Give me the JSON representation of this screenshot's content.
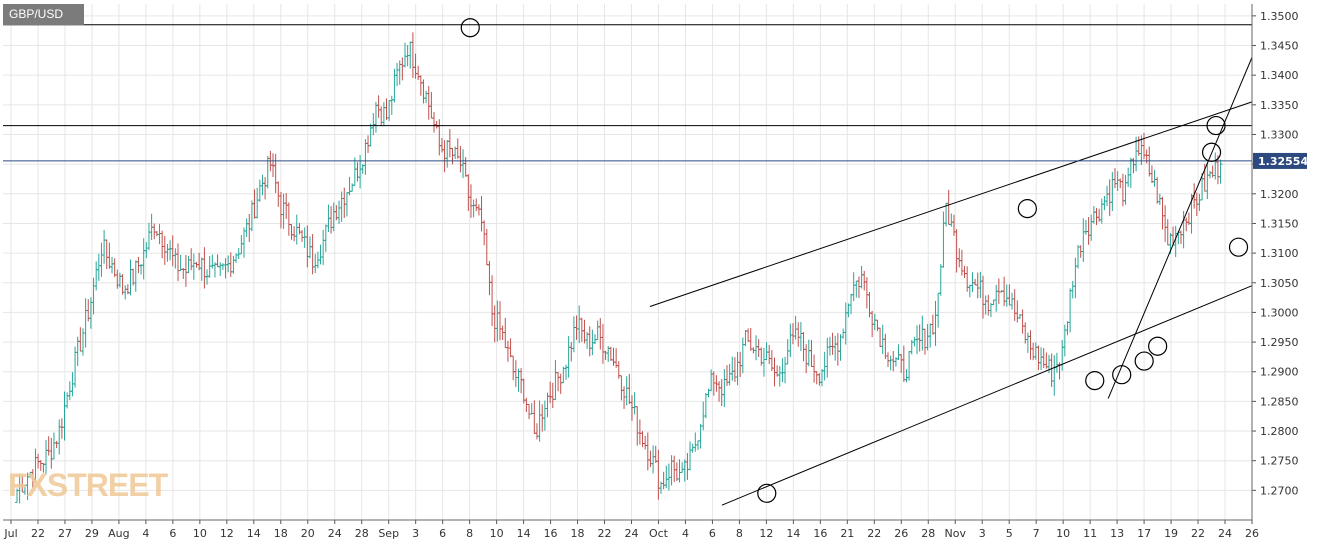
{
  "symbol": "GBP/USD",
  "logo_text": "FXSTREET",
  "colors": {
    "bull": "#26a69a",
    "bear": "#c0504d",
    "current_line": "#2c4a80",
    "price_badge": "#2c4a80",
    "lines": "#000000",
    "grid": "#e6e6e6"
  },
  "chart_data": {
    "type": "candlestick",
    "title": "",
    "xlabel": "",
    "ylabel": "",
    "ylim": [
      1.265,
      1.352
    ],
    "yticks": [
      "1.3500",
      "1.3450",
      "1.3400",
      "1.3350",
      "1.3300",
      "1.3250",
      "1.3200",
      "1.3150",
      "1.3100",
      "1.3050",
      "1.3000",
      "1.2950",
      "1.2900",
      "1.2850",
      "1.2800",
      "1.2750",
      "1.2700"
    ],
    "xticks": [
      "Jul",
      "22",
      "27",
      "29",
      "Aug",
      "4",
      "6",
      "10",
      "12",
      "14",
      "18",
      "20",
      "24",
      "28",
      "Sep",
      "3",
      "6",
      "8",
      "10",
      "14",
      "16",
      "18",
      "22",
      "24",
      "Oct",
      "4",
      "6",
      "8",
      "12",
      "14",
      "16",
      "21",
      "22",
      "26",
      "28",
      "Nov",
      "3",
      "5",
      "7",
      "10",
      "11",
      "13",
      "17",
      "19",
      "22",
      "24",
      "26"
    ],
    "x_sessions": 139,
    "current_price": "1.32554",
    "series": [
      {
        "values": [
          1.27,
          1.2725,
          1.2745,
          1.276,
          1.28,
          1.288,
          1.295,
          1.302,
          1.311,
          1.308,
          1.304,
          1.306,
          1.31,
          1.315,
          1.312,
          1.308,
          1.307,
          1.309,
          1.307,
          1.306,
          1.308,
          1.311,
          1.315,
          1.321,
          1.325,
          1.318,
          1.315,
          1.312,
          1.309,
          1.312,
          1.317,
          1.32,
          1.323,
          1.328,
          1.335,
          1.333,
          1.34,
          1.345,
          1.341,
          1.335,
          1.328,
          1.327,
          1.325,
          1.318,
          1.315,
          1.3,
          1.296,
          1.29,
          1.287,
          1.279,
          1.285,
          1.288,
          1.292,
          1.298,
          1.295,
          1.296,
          1.294,
          1.29,
          1.285,
          1.28,
          1.276,
          1.271,
          1.274,
          1.272,
          1.276,
          1.284,
          1.289,
          1.287,
          1.29,
          1.295,
          1.294,
          1.292,
          1.289,
          1.294,
          1.296,
          1.292,
          1.29,
          1.293,
          1.296,
          1.304,
          1.306,
          1.3,
          1.295,
          1.292,
          1.29,
          1.294,
          1.296,
          1.299,
          1.318,
          1.311,
          1.306,
          1.304,
          1.302,
          1.305,
          1.302,
          1.298,
          1.294,
          1.292,
          1.29,
          1.293,
          1.306,
          1.314,
          1.316,
          1.319,
          1.322,
          1.32,
          1.328,
          1.325,
          1.32,
          1.312,
          1.314,
          1.317,
          1.32,
          1.323,
          1.325
        ]
      }
    ],
    "drawn_lines": [
      {
        "name": "resistance-high",
        "price": 1.3485
      },
      {
        "name": "resistance-mid",
        "price": 1.3315
      },
      {
        "name": "channel-upper",
        "from": [
          72,
          1.301
        ],
        "to": [
          139,
          1.3355
        ]
      },
      {
        "name": "channel-lower",
        "from": [
          80,
          1.2675
        ],
        "to": [
          139,
          1.3045
        ]
      },
      {
        "name": "uptrend",
        "from": [
          123,
          1.2855
        ],
        "to": [
          139,
          1.343
        ]
      }
    ],
    "circles": [
      {
        "x": 52,
        "y": 1.348
      },
      {
        "x": 85,
        "y": 1.2695
      },
      {
        "x": 114,
        "y": 1.3175
      },
      {
        "x": 121.5,
        "y": 1.2885
      },
      {
        "x": 124.5,
        "y": 1.2895
      },
      {
        "x": 127,
        "y": 1.2918
      },
      {
        "x": 128.5,
        "y": 1.2943
      },
      {
        "x": 134.5,
        "y": 1.327
      },
      {
        "x": 135,
        "y": 1.3315
      },
      {
        "x": 137.5,
        "y": 1.311
      }
    ]
  }
}
